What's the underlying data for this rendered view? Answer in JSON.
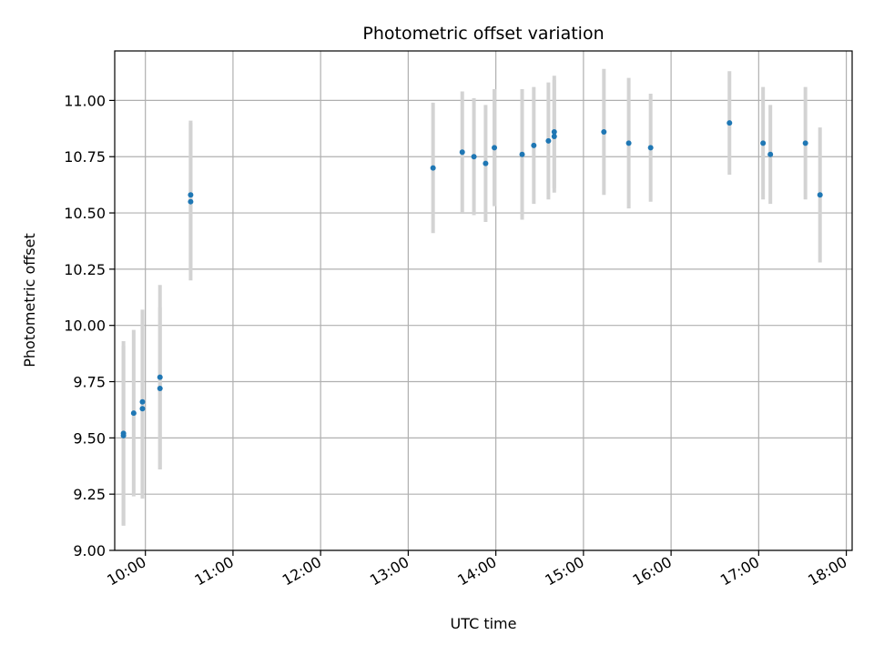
{
  "chart_data": {
    "type": "scatter",
    "title": "Photometric offset variation",
    "xlabel": "UTC time",
    "ylabel": "Photometric offset",
    "grid": true,
    "legend": "none",
    "ylim": [
      9.0,
      11.22
    ],
    "xlim": [
      "09:39",
      "18:04"
    ],
    "x_ticks": [
      "10:00",
      "11:00",
      "12:00",
      "13:00",
      "14:00",
      "15:00",
      "16:00",
      "17:00",
      "18:00"
    ],
    "y_ticks": [
      "9.00",
      "9.25",
      "9.50",
      "9.75",
      "10.00",
      "10.25",
      "10.50",
      "10.75",
      "11.00"
    ],
    "colors": {
      "point": "#1f77b4",
      "errorbar": "#d3d3d3",
      "grid": "#b0b0b0"
    },
    "points": [
      {
        "x": "09:45",
        "y": 9.52,
        "err": 0.41
      },
      {
        "x": "09:45",
        "y": 9.51,
        "err": 0.4
      },
      {
        "x": "09:52",
        "y": 9.61,
        "err": 0.37
      },
      {
        "x": "09:58",
        "y": 9.66,
        "err": 0.41
      },
      {
        "x": "09:58",
        "y": 9.63,
        "err": 0.4
      },
      {
        "x": "10:10",
        "y": 9.77,
        "err": 0.41
      },
      {
        "x": "10:10",
        "y": 9.72,
        "err": 0.36
      },
      {
        "x": "10:31",
        "y": 10.58,
        "err": 0.33
      },
      {
        "x": "10:31",
        "y": 10.55,
        "err": 0.35
      },
      {
        "x": "13:17",
        "y": 10.7,
        "err": 0.29
      },
      {
        "x": "13:37",
        "y": 10.77,
        "err": 0.27
      },
      {
        "x": "13:45",
        "y": 10.75,
        "err": 0.26
      },
      {
        "x": "13:53",
        "y": 10.72,
        "err": 0.26
      },
      {
        "x": "13:59",
        "y": 10.79,
        "err": 0.26
      },
      {
        "x": "14:18",
        "y": 10.76,
        "err": 0.29
      },
      {
        "x": "14:26",
        "y": 10.8,
        "err": 0.26
      },
      {
        "x": "14:36",
        "y": 10.82,
        "err": 0.26
      },
      {
        "x": "14:40",
        "y": 10.86,
        "err": 0.25
      },
      {
        "x": "14:40",
        "y": 10.84,
        "err": 0.25
      },
      {
        "x": "15:14",
        "y": 10.86,
        "err": 0.28
      },
      {
        "x": "15:31",
        "y": 10.81,
        "err": 0.29
      },
      {
        "x": "15:46",
        "y": 10.79,
        "err": 0.24
      },
      {
        "x": "16:40",
        "y": 10.9,
        "err": 0.23
      },
      {
        "x": "17:03",
        "y": 10.81,
        "err": 0.25
      },
      {
        "x": "17:08",
        "y": 10.76,
        "err": 0.22
      },
      {
        "x": "17:32",
        "y": 10.81,
        "err": 0.25
      },
      {
        "x": "17:42",
        "y": 10.58,
        "err": 0.3
      }
    ]
  }
}
